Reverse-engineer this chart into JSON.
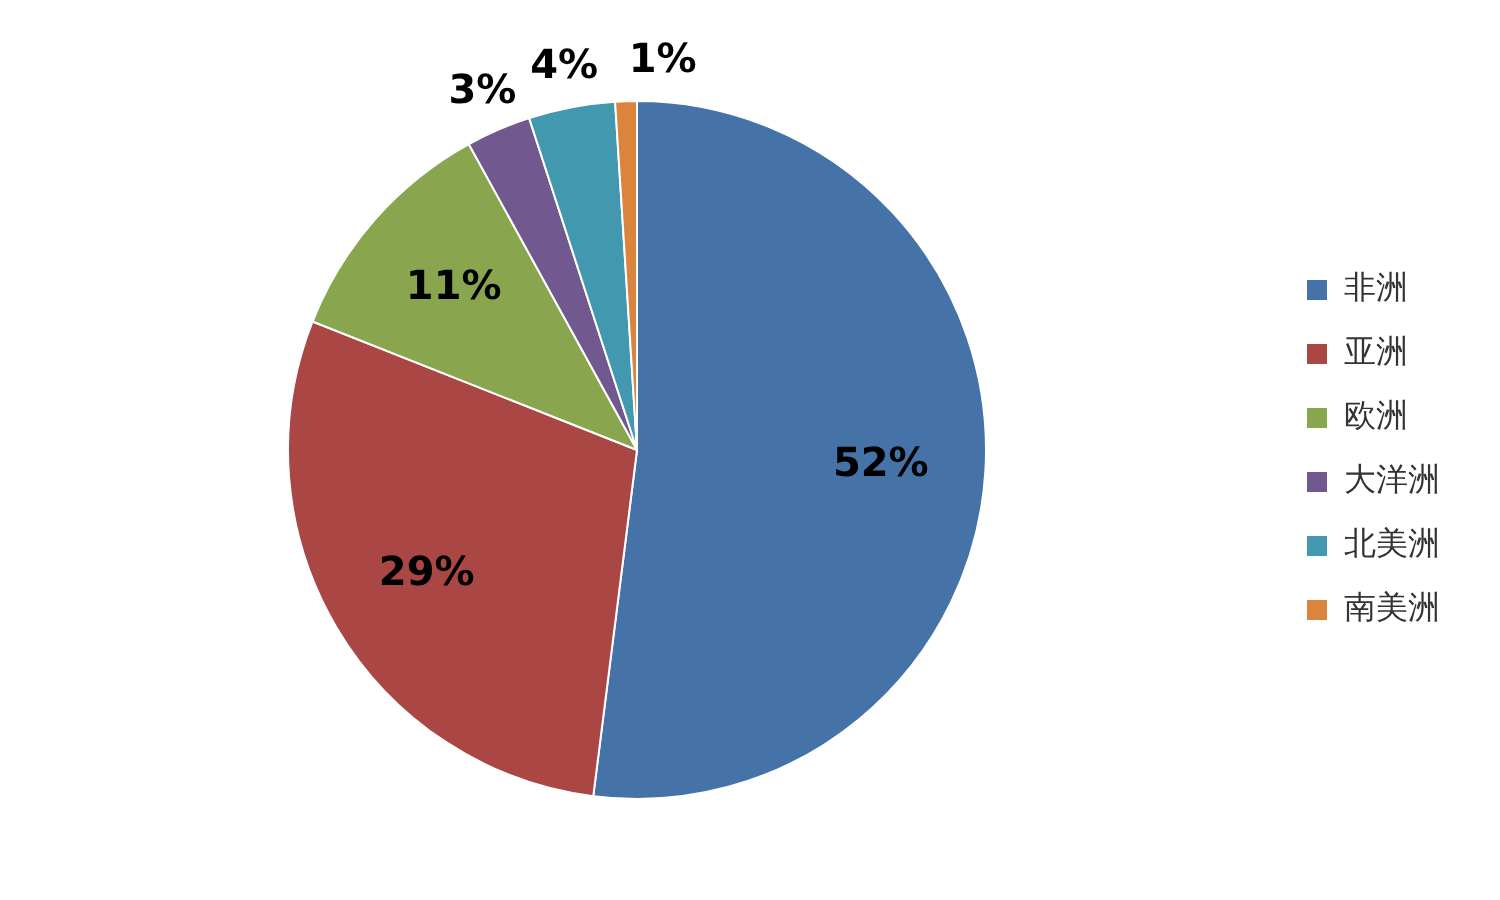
{
  "chart_data": {
    "type": "pie",
    "categories": [
      "非洲",
      "亚洲",
      "欧洲",
      "大洋洲",
      "北美洲",
      "南美洲"
    ],
    "values": [
      52,
      29,
      11,
      3,
      4,
      1
    ],
    "colors": [
      "#4572a7",
      "#aa4643",
      "#89a54e",
      "#71588f",
      "#4198af",
      "#db843d"
    ],
    "legend": "right",
    "value_labels": [
      "52%",
      "29%",
      "11%",
      "3%",
      "4%",
      "1%"
    ]
  }
}
